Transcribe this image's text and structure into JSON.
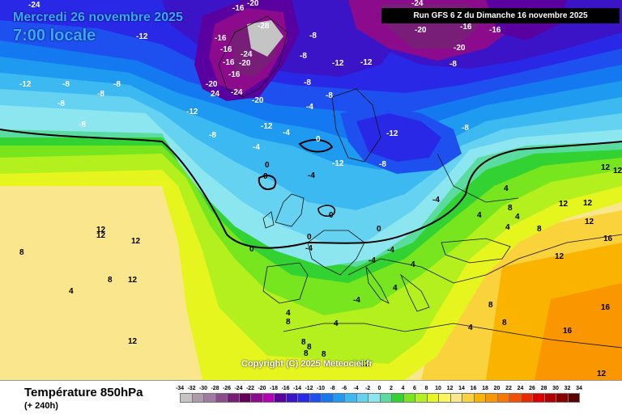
{
  "header": {
    "date_line": "Mercredi 26 novembre 2025",
    "time_line": "7:00 locale",
    "run_info": "Run GFS 6 Z du Dimanche 16 novembre 2025"
  },
  "footer": {
    "parameter_title": "Température 850hPa",
    "forecast_offset": "(+ 240h)",
    "copyright": "Copyright (C) 2025 Meteociel.fr"
  },
  "legend": {
    "ticks": [
      "-34",
      "-32",
      "-30",
      "-28",
      "-26",
      "-24",
      "-22",
      "-20",
      "-18",
      "-16",
      "-14",
      "-12",
      "-10",
      "-8",
      "-6",
      "-4",
      "-2",
      "0",
      "2",
      "4",
      "6",
      "8",
      "10",
      "12",
      "14",
      "16",
      "18",
      "20",
      "22",
      "24",
      "26",
      "28",
      "30",
      "32",
      "34"
    ],
    "colors": [
      "#c4c4c4",
      "#ab9bab",
      "#a07aa0",
      "#8c4c8c",
      "#781e78",
      "#64005a",
      "#8c0a8c",
      "#b400b4",
      "#5a00a0",
      "#3c14c8",
      "#2828e6",
      "#1e50f0",
      "#1478f0",
      "#1e9bf0",
      "#3cb9f0",
      "#64d2f0",
      "#8ce6f0",
      "#5adca0",
      "#32d232",
      "#78e61e",
      "#b4f01e",
      "#e6f51e",
      "#faf55a",
      "#fae68c",
      "#fad23c",
      "#fab400",
      "#fa9600",
      "#fa7800",
      "#f55000",
      "#eb2800",
      "#dc0000",
      "#b40000",
      "#8c0000",
      "#5a0000"
    ]
  },
  "labels": [
    {
      "t": "-24",
      "c": "w"
    },
    {
      "t": "-16",
      "c": "w"
    },
    {
      "t": "-20",
      "c": "w"
    },
    {
      "t": "-28",
      "c": "w"
    },
    {
      "t": "-12",
      "c": "w"
    },
    {
      "t": "-16",
      "c": "w"
    },
    {
      "t": "-16",
      "c": "w"
    },
    {
      "t": "-24",
      "c": "w"
    },
    {
      "t": "-20",
      "c": "w"
    },
    {
      "t": "-16",
      "c": "w"
    },
    {
      "t": "-16",
      "c": "w"
    },
    {
      "t": "-20",
      "c": "w"
    },
    {
      "t": "24",
      "c": "w"
    },
    {
      "t": "-24",
      "c": "w"
    },
    {
      "t": "-20",
      "c": "w"
    },
    {
      "t": "-12",
      "c": "w"
    },
    {
      "t": "-8",
      "c": "w"
    },
    {
      "t": "-12",
      "c": "w"
    },
    {
      "t": "-8",
      "c": "w"
    },
    {
      "t": "-8",
      "c": "w"
    },
    {
      "t": "-8",
      "c": "w"
    },
    {
      "t": "-12",
      "c": "w"
    },
    {
      "t": "-8",
      "c": "w"
    },
    {
      "t": "-8",
      "c": "w"
    },
    {
      "t": "-12",
      "c": "w"
    },
    {
      "t": "-4",
      "c": "w"
    },
    {
      "t": "-4",
      "c": "w"
    },
    {
      "t": "-8",
      "c": "w"
    },
    {
      "t": "0",
      "c": "w"
    },
    {
      "t": "-12",
      "c": "w"
    },
    {
      "t": "-4",
      "c": "w"
    },
    {
      "t": "-8",
      "c": "w"
    },
    {
      "t": "-24",
      "c": "w"
    },
    {
      "t": "-20",
      "c": "w"
    },
    {
      "t": "-16",
      "c": "w"
    },
    {
      "t": "-16",
      "c": "w"
    },
    {
      "t": "-20",
      "c": "w"
    },
    {
      "t": "-12",
      "c": "w"
    },
    {
      "t": "-8",
      "c": "w"
    },
    {
      "t": "-12",
      "c": "w"
    },
    {
      "t": "-8",
      "c": "w"
    },
    {
      "t": "-8",
      "c": "w"
    },
    {
      "t": "-8",
      "c": "w"
    },
    {
      "t": "-8",
      "c": "w"
    },
    {
      "t": "-4",
      "c": "w"
    },
    {
      "t": "-4",
      "c": "w"
    },
    {
      "t": "0",
      "c": "w"
    },
    {
      "t": "0",
      "c": "w"
    },
    {
      "t": "-4",
      "c": "w"
    },
    {
      "t": "0",
      "c": "w"
    },
    {
      "t": "0",
      "c": "w"
    },
    {
      "t": "0",
      "c": "w"
    },
    {
      "t": "-4",
      "c": "w"
    },
    {
      "t": "0",
      "c": "w"
    },
    {
      "t": "-4",
      "c": "w"
    },
    {
      "t": "4",
      "c": "w"
    },
    {
      "t": "4",
      "c": "w"
    },
    {
      "t": "-4",
      "c": "w"
    },
    {
      "t": "4",
      "c": "w"
    },
    {
      "t": "4",
      "c": "w"
    },
    {
      "t": "4",
      "c": "w"
    },
    {
      "t": "8",
      "c": "w"
    },
    {
      "t": "4",
      "c": "w"
    },
    {
      "t": "8",
      "c": "w"
    },
    {
      "t": "8",
      "c": "w"
    },
    {
      "t": "8",
      "c": "w"
    },
    {
      "t": "12",
      "c": "w"
    },
    {
      "t": "12",
      "c": "w"
    },
    {
      "t": "12",
      "c": "w"
    },
    {
      "t": "12",
      "c": "w"
    },
    {
      "t": "12",
      "c": "w"
    },
    {
      "t": "16",
      "c": "w"
    },
    {
      "t": "12",
      "c": "w"
    },
    {
      "t": "16",
      "c": "w"
    },
    {
      "t": "16",
      "c": "w"
    },
    {
      "t": "12",
      "c": "w"
    },
    {
      "t": "12",
      "c": "w"
    },
    {
      "t": "12",
      "c": "w"
    },
    {
      "t": "12",
      "c": "w"
    },
    {
      "t": "8",
      "c": "w"
    },
    {
      "t": "8",
      "c": "w"
    },
    {
      "t": "12",
      "c": "w"
    },
    {
      "t": "4",
      "c": "w"
    },
    {
      "t": "4",
      "c": "w"
    },
    {
      "t": "8",
      "c": "w"
    },
    {
      "t": "8",
      "c": "w"
    },
    {
      "t": "8",
      "c": "w"
    },
    {
      "t": "8",
      "c": "w"
    },
    {
      "t": "4",
      "c": "w"
    },
    {
      "t": "4",
      "c": "w"
    },
    {
      "t": "8",
      "c": "w"
    },
    {
      "t": "12",
      "c": "w"
    },
    {
      "t": "12",
      "c": "w"
    }
  ]
}
